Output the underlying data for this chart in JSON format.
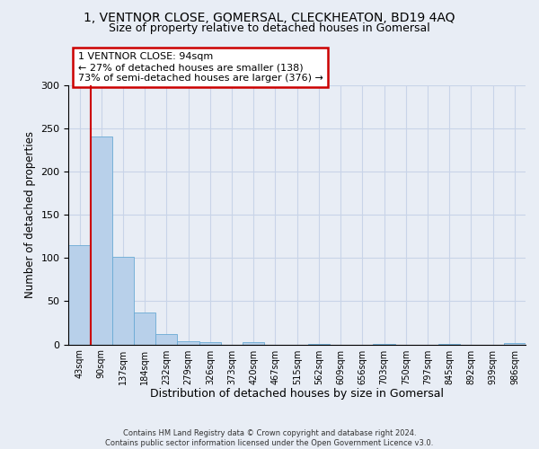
{
  "title_line1": "1, VENTNOR CLOSE, GOMERSAL, CLECKHEATON, BD19 4AQ",
  "title_line2": "Size of property relative to detached houses in Gomersal",
  "xlabel": "Distribution of detached houses by size in Gomersal",
  "ylabel": "Number of detached properties",
  "footnote": "Contains HM Land Registry data © Crown copyright and database right 2024.\nContains public sector information licensed under the Open Government Licence v3.0.",
  "categories": [
    "43sqm",
    "90sqm",
    "137sqm",
    "184sqm",
    "232sqm",
    "279sqm",
    "326sqm",
    "373sqm",
    "420sqm",
    "467sqm",
    "515sqm",
    "562sqm",
    "609sqm",
    "656sqm",
    "703sqm",
    "750sqm",
    "797sqm",
    "845sqm",
    "892sqm",
    "939sqm",
    "986sqm"
  ],
  "values": [
    115,
    240,
    101,
    37,
    12,
    4,
    3,
    0,
    3,
    0,
    0,
    1,
    0,
    0,
    1,
    0,
    0,
    1,
    0,
    0,
    2
  ],
  "bar_color": "#b8d0ea",
  "bar_edge_color": "#6aaad4",
  "property_line_x": 0.5,
  "annotation_text": "1 VENTNOR CLOSE: 94sqm\n← 27% of detached houses are smaller (138)\n73% of semi-detached houses are larger (376) →",
  "annotation_box_color": "white",
  "annotation_box_edge_color": "#cc0000",
  "vline_color": "#cc0000",
  "ylim": [
    0,
    300
  ],
  "yticks": [
    0,
    50,
    100,
    150,
    200,
    250,
    300
  ],
  "grid_color": "#c8d4e8",
  "background_color": "#e8edf5",
  "title_fontsize": 10,
  "subtitle_fontsize": 9,
  "ylabel_fontsize": 8.5,
  "xlabel_fontsize": 9,
  "tick_fontsize": 7,
  "annot_fontsize": 8
}
